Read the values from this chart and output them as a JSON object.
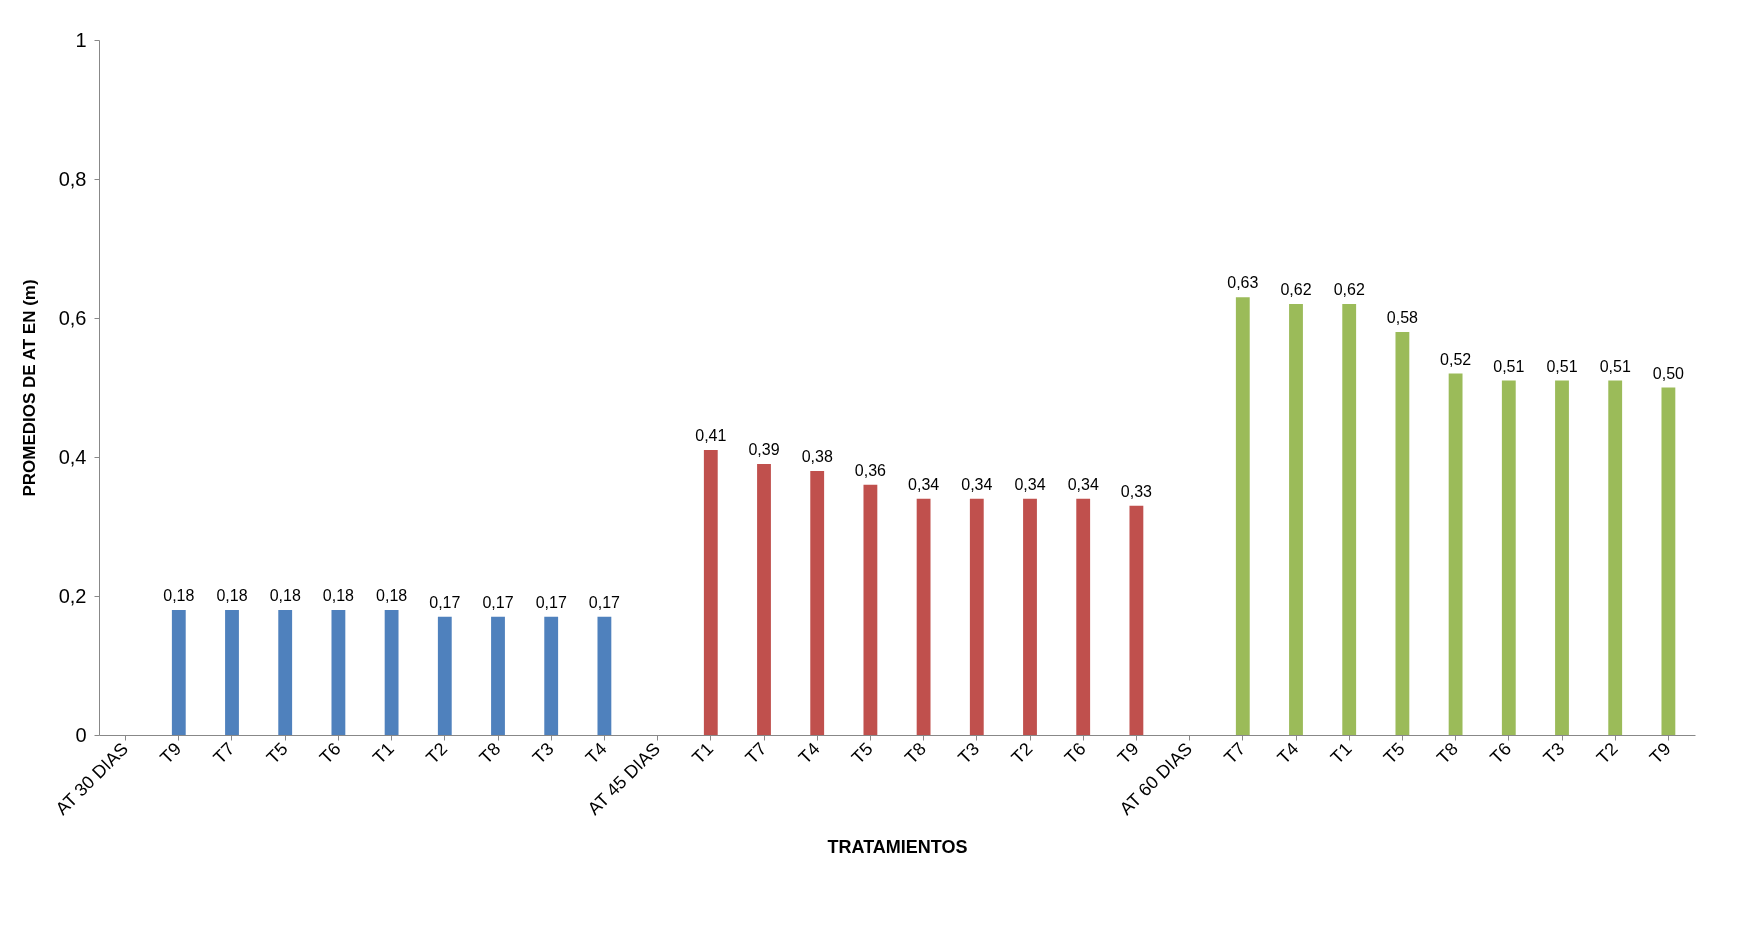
{
  "chart_data": {
    "type": "bar",
    "xlabel": "TRATAMIENTOS",
    "ylabel": "PROMEDIOS DE AT EN (m)",
    "categories": [
      "AT 30 DIAS",
      "T9",
      "T7",
      "T5",
      "T6",
      "T1",
      "T2",
      "T8",
      "T3",
      "T4",
      "AT 45 DIAS",
      "T1",
      "T7",
      "T4",
      "T5",
      "T8",
      "T3",
      "T2",
      "T6",
      "T9",
      "AT 60 DIAS",
      "T7",
      "T4",
      "T1",
      "T5",
      "T8",
      "T6",
      "T3",
      "T2",
      "T9"
    ],
    "values": [
      null,
      0.18,
      0.18,
      0.18,
      0.18,
      0.18,
      0.17,
      0.17,
      0.17,
      0.17,
      null,
      0.41,
      0.39,
      0.38,
      0.36,
      0.34,
      0.34,
      0.34,
      0.34,
      0.33,
      null,
      0.63,
      0.62,
      0.62,
      0.58,
      0.52,
      0.51,
      0.51,
      0.51,
      0.5
    ],
    "value_labels": [
      null,
      "0,18",
      "0,18",
      "0,18",
      "0,18",
      "0,18",
      "0,17",
      "0,17",
      "0,17",
      "0,17",
      null,
      "0,41",
      "0,39",
      "0,38",
      "0,36",
      "0,34",
      "0,34",
      "0,34",
      "0,34",
      "0,33",
      null,
      "0,63",
      "0,62",
      "0,62",
      "0,58",
      "0,52",
      "0,51",
      "0,51",
      "0,51",
      "0,50"
    ],
    "colors": [
      "#4f81bd",
      "#4f81bd",
      "#4f81bd",
      "#4f81bd",
      "#4f81bd",
      "#4f81bd",
      "#4f81bd",
      "#4f81bd",
      "#4f81bd",
      "#4f81bd",
      "#c0504d",
      "#c0504d",
      "#c0504d",
      "#c0504d",
      "#c0504d",
      "#c0504d",
      "#c0504d",
      "#c0504d",
      "#c0504d",
      "#c0504d",
      "#9bbb59",
      "#9bbb59",
      "#9bbb59",
      "#9bbb59",
      "#9bbb59",
      "#9bbb59",
      "#9bbb59",
      "#9bbb59",
      "#9bbb59",
      "#9bbb59"
    ],
    "ylim": [
      0,
      1
    ],
    "yticks": [
      0,
      {
        "value": 0.2,
        "label": "0,2"
      },
      {
        "value": 0.4,
        "label": "0,4"
      },
      {
        "value": 0.6,
        "label": "0,6"
      },
      {
        "value": 0.8,
        "label": "0,8"
      },
      1
    ],
    "grid": false
  }
}
